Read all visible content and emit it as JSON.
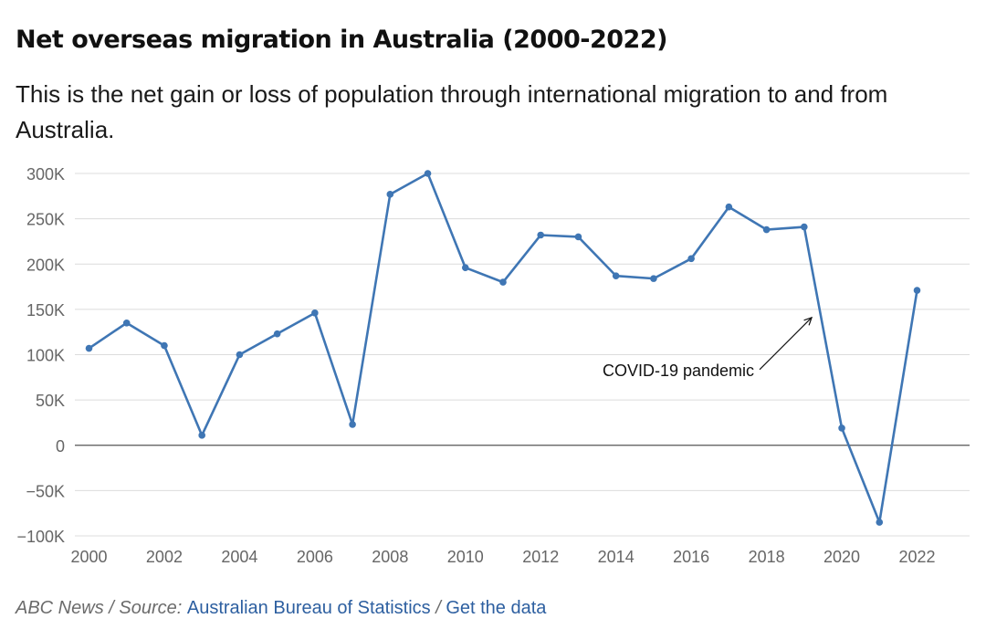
{
  "header": {
    "title": "Net overseas migration in Australia (2000-2022)",
    "subtitle": "This is the net gain or loss of population through international migration to and from Australia."
  },
  "chart_data": {
    "type": "line",
    "title": "Net overseas migration in Australia (2000-2022)",
    "subtitle": "This is the net gain or loss of population through international migration to and from Australia.",
    "xlabel": "",
    "ylabel": "",
    "x": [
      2000,
      2001,
      2002,
      2003,
      2004,
      2005,
      2006,
      2007,
      2008,
      2009,
      2010,
      2011,
      2012,
      2013,
      2014,
      2015,
      2016,
      2017,
      2018,
      2019,
      2020,
      2021,
      2022
    ],
    "series": [
      {
        "values": [
          107000,
          135000,
          110000,
          11000,
          100000,
          123000,
          146000,
          23000,
          277000,
          300000,
          196000,
          180000,
          232000,
          230000,
          187000,
          184000,
          206000,
          263000,
          238000,
          241000,
          19000,
          -85000,
          171000
        ]
      }
    ],
    "xlim": [
      2000,
      2023
    ],
    "ylim": [
      -100000,
      300000
    ],
    "x_ticks": [
      {
        "value": 2000,
        "label": "2000"
      },
      {
        "value": 2002,
        "label": "2002"
      },
      {
        "value": 2004,
        "label": "2004"
      },
      {
        "value": 2006,
        "label": "2006"
      },
      {
        "value": 2008,
        "label": "2008"
      },
      {
        "value": 2010,
        "label": "2010"
      },
      {
        "value": 2012,
        "label": "2012"
      },
      {
        "value": 2014,
        "label": "2014"
      },
      {
        "value": 2016,
        "label": "2016"
      },
      {
        "value": 2018,
        "label": "2018"
      },
      {
        "value": 2020,
        "label": "2020"
      },
      {
        "value": 2022,
        "label": "2022"
      }
    ],
    "y_ticks": [
      {
        "value": 300000,
        "label": "300K"
      },
      {
        "value": 250000,
        "label": "250K"
      },
      {
        "value": 200000,
        "label": "200K"
      },
      {
        "value": 150000,
        "label": "150K"
      },
      {
        "value": 100000,
        "label": "100K"
      },
      {
        "value": 50000,
        "label": "50K"
      },
      {
        "value": 0,
        "label": "0"
      },
      {
        "value": -50000,
        "label": "−50K"
      },
      {
        "value": -100000,
        "label": "−100K"
      }
    ],
    "grid": true,
    "annotations": [
      {
        "text": "COVID-19 pandemic",
        "target_x": 2019.2,
        "target_y": 141000
      }
    ],
    "colors": {
      "line": "#3f76b4",
      "grid": "#dcdcdc",
      "zero_line": "#555555",
      "tick_label": "#666666",
      "annotation": "#111111"
    }
  },
  "footer": {
    "publisher": "ABC News",
    "separator": " / ",
    "source_prefix": "Source: ",
    "source_link": "Australian Bureau of Statistics",
    "data_link": "Get the data"
  }
}
